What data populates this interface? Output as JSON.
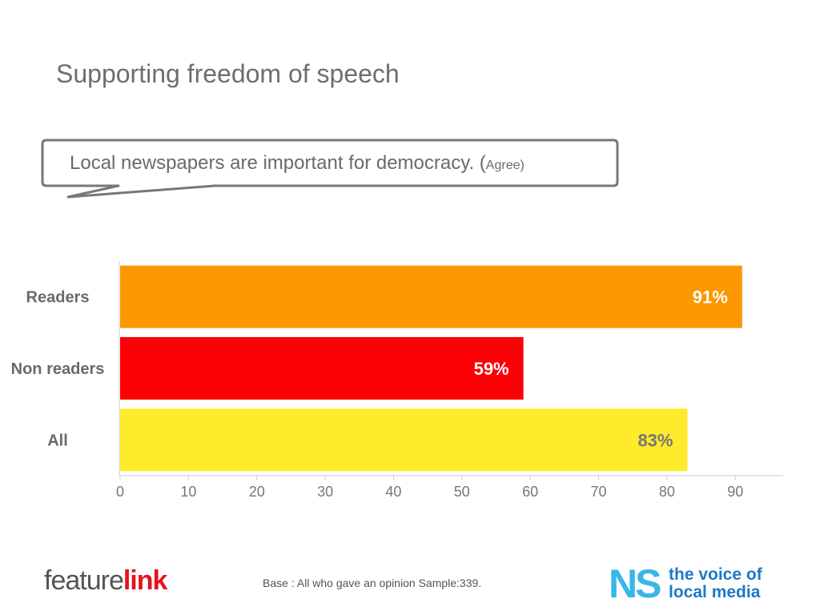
{
  "title": "Supporting freedom of speech",
  "callout": {
    "text_main": "Local newspapers are important for democracy. (",
    "text_small": "Agree)"
  },
  "chart_data": {
    "type": "bar",
    "orientation": "horizontal",
    "categories": [
      "Readers",
      "Non readers",
      "All"
    ],
    "values": [
      91,
      59,
      83
    ],
    "value_labels": [
      "91%",
      "59%",
      "83%"
    ],
    "colors": [
      "#fb9800",
      "#fb0005",
      "#ffea2c"
    ],
    "label_colors": [
      "#ffffff",
      "#ffffff",
      "#777777"
    ],
    "xlim": [
      0,
      97
    ],
    "xticks": [
      0,
      10,
      20,
      30,
      40,
      50,
      60,
      70,
      80,
      90
    ],
    "grid": false
  },
  "footer": {
    "base_text": "Base : All who gave an opinion  Sample:339.",
    "logo_left_a": "feature",
    "logo_left_b": "link",
    "logo_right_ns": "NS",
    "logo_right_line1": "the voice of",
    "logo_right_line2": "local media"
  }
}
